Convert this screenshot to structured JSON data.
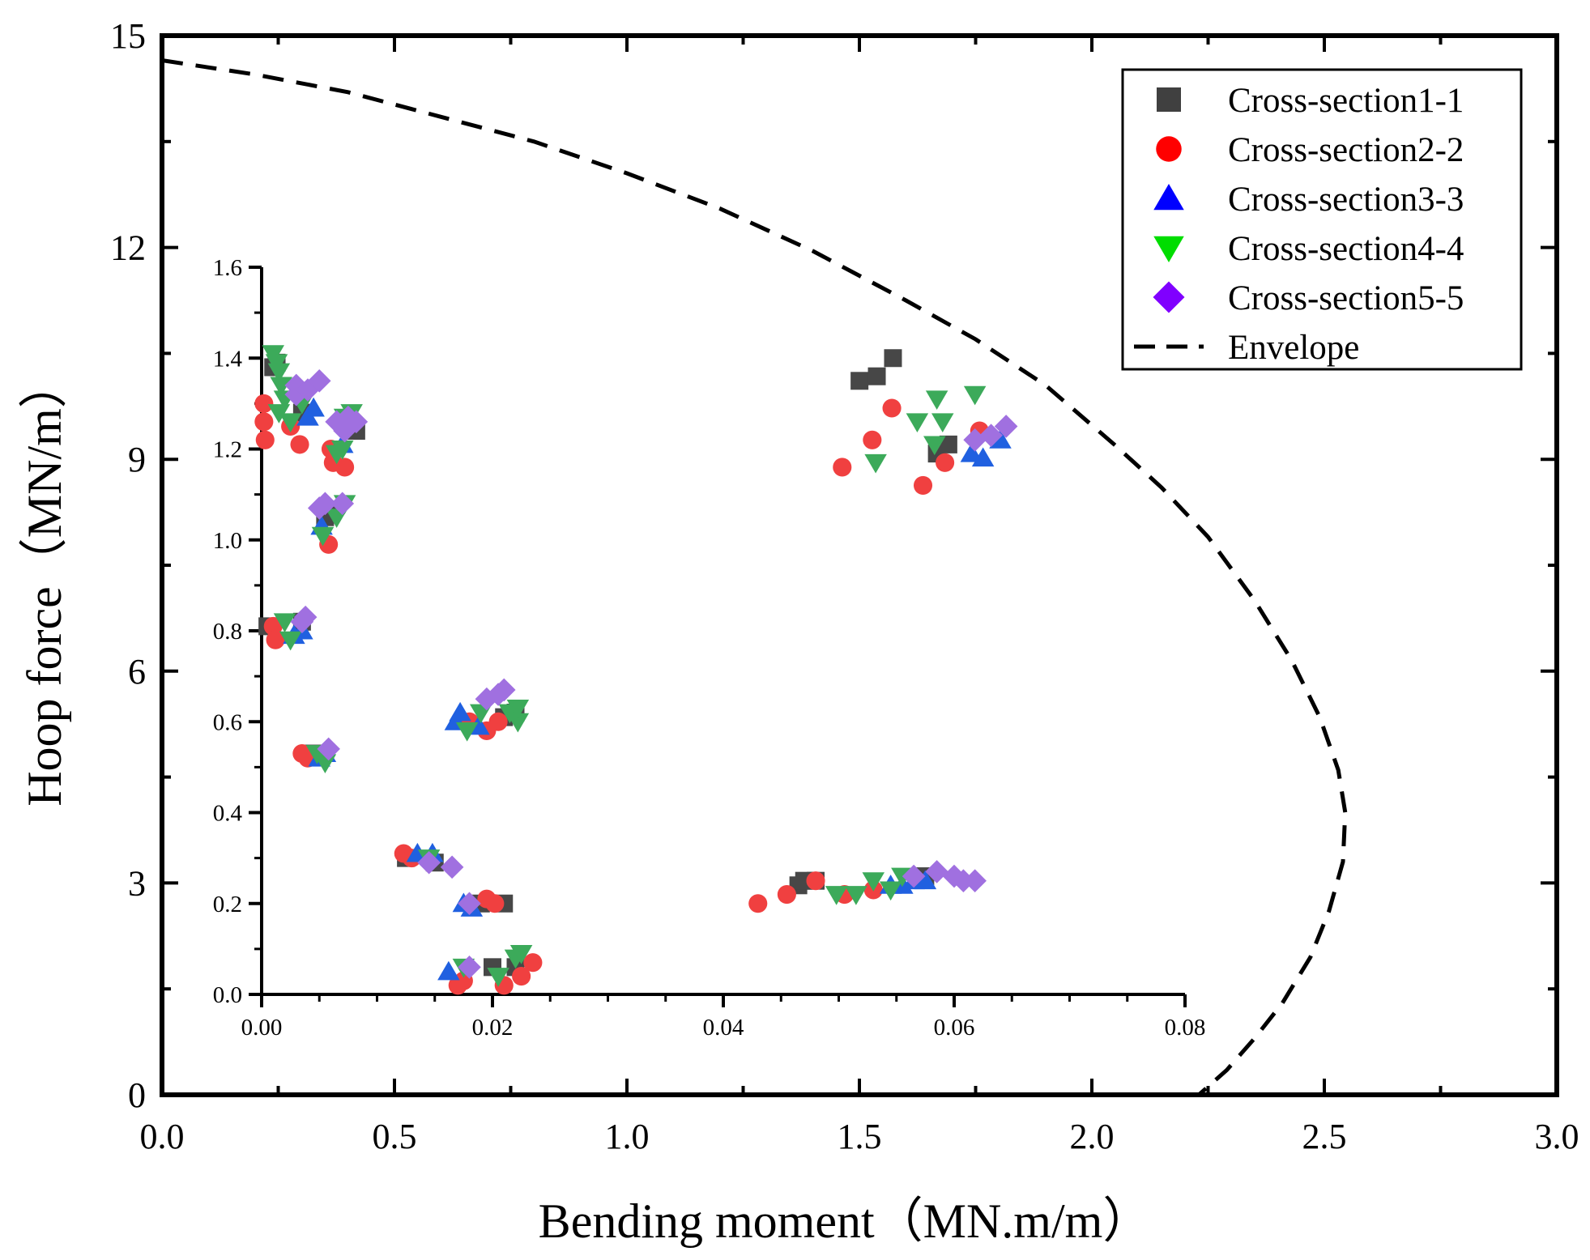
{
  "chart_data": [
    {
      "id": "main",
      "type": "line",
      "title": "",
      "xlabel": "Bending moment（MN.m/m）",
      "ylabel": "Hoop force（MN/m）",
      "xlim": [
        0,
        3
      ],
      "ylim": [
        0,
        15
      ],
      "xticks": [
        0.0,
        0.5,
        1.0,
        1.5,
        2.0,
        2.5,
        3.0
      ],
      "xtick_labels": [
        "0.0",
        "0.5",
        "1.0",
        "1.5",
        "2.0",
        "2.5",
        "3.0"
      ],
      "yticks": [
        0,
        3,
        6,
        9,
        12,
        15
      ],
      "ytick_labels": [
        "0",
        "3",
        "6",
        "9",
        "12",
        "15"
      ],
      "legend_position": "top-right",
      "series": [
        {
          "name": "Envelope",
          "style": "dashed",
          "color": "#000000",
          "x": [
            0.0,
            0.2,
            0.4,
            0.6,
            0.8,
            1.0,
            1.2,
            1.4,
            1.6,
            1.75,
            1.9,
            2.05,
            2.15,
            2.25,
            2.35,
            2.43,
            2.49,
            2.53,
            2.545,
            2.54,
            2.51,
            2.47,
            2.41,
            2.35,
            2.29,
            2.23
          ],
          "y": [
            14.65,
            14.45,
            14.2,
            13.85,
            13.5,
            13.05,
            12.55,
            11.95,
            11.25,
            10.7,
            10.05,
            9.2,
            8.6,
            7.9,
            7.0,
            6.15,
            5.35,
            4.6,
            4.0,
            3.3,
            2.6,
            1.95,
            1.3,
            0.8,
            0.35,
            0.0
          ]
        }
      ],
      "legend_entries": [
        {
          "label": "Cross-section1-1",
          "marker": "square",
          "color": "#404040"
        },
        {
          "label": "Cross-section2-2",
          "marker": "circle",
          "color": "#ff0000"
        },
        {
          "label": "Cross-section3-3",
          "marker": "triangle-up",
          "color": "#0000ff"
        },
        {
          "label": "Cross-section4-4",
          "marker": "triangle-down",
          "color": "#00dd00"
        },
        {
          "label": "Cross-section5-5",
          "marker": "diamond",
          "color": "#8000ff"
        },
        {
          "label": "Envelope",
          "marker": "dash",
          "color": "#000000"
        }
      ]
    },
    {
      "id": "inset",
      "type": "scatter",
      "xlim": [
        0,
        0.08
      ],
      "ylim": [
        0,
        1.6
      ],
      "xticks": [
        0.0,
        0.02,
        0.04,
        0.06,
        0.08
      ],
      "xtick_labels": [
        "0.00",
        "0.02",
        "0.04",
        "0.06",
        "0.08"
      ],
      "yticks": [
        0.0,
        0.2,
        0.4,
        0.6,
        0.8,
        1.0,
        1.2,
        1.4,
        1.6
      ],
      "ytick_labels": [
        "0.0",
        "0.2",
        "0.4",
        "0.6",
        "0.8",
        "1.0",
        "1.2",
        "1.4",
        "1.6"
      ],
      "series": [
        {
          "name": "Cross-section1-1",
          "marker": "square",
          "color": "#404040",
          "points": [
            [
              0.0005,
              0.81
            ],
            [
              0.001,
              1.38
            ],
            [
              0.0013,
              1.39
            ],
            [
              0.0035,
              1.28
            ],
            [
              0.0055,
              1.05
            ],
            [
              0.006,
              1.06
            ],
            [
              0.0078,
              1.25
            ],
            [
              0.0082,
              1.24
            ],
            [
              0.0035,
              0.82
            ],
            [
              0.0045,
              0.53
            ],
            [
              0.0125,
              0.3
            ],
            [
              0.015,
              0.29
            ],
            [
              0.019,
              0.2
            ],
            [
              0.021,
              0.2
            ],
            [
              0.021,
              0.61
            ],
            [
              0.022,
              0.62
            ],
            [
              0.02,
              0.06
            ],
            [
              0.022,
              0.06
            ],
            [
              0.0465,
              0.24
            ],
            [
              0.047,
              0.25
            ],
            [
              0.048,
              0.25
            ],
            [
              0.0518,
              1.35
            ],
            [
              0.0533,
              1.36
            ],
            [
              0.0547,
              1.4
            ],
            [
              0.0585,
              1.19
            ],
            [
              0.0595,
              1.21
            ],
            [
              0.0575,
              0.26
            ]
          ]
        },
        {
          "name": "Cross-section2-2",
          "marker": "circle",
          "color": "#ff0000",
          "points": [
            [
              0.0002,
              1.3
            ],
            [
              0.0003,
              1.22
            ],
            [
              0.0002,
              1.26
            ],
            [
              0.001,
              0.81
            ],
            [
              0.0012,
              0.78
            ],
            [
              0.0025,
              1.25
            ],
            [
              0.0033,
              1.21
            ],
            [
              0.006,
              1.2
            ],
            [
              0.0062,
              1.17
            ],
            [
              0.0072,
              1.16
            ],
            [
              0.0058,
              0.99
            ],
            [
              0.0035,
              0.53
            ],
            [
              0.004,
              0.52
            ],
            [
              0.0123,
              0.31
            ],
            [
              0.013,
              0.3
            ],
            [
              0.017,
              0.02
            ],
            [
              0.0175,
              0.03
            ],
            [
              0.0195,
              0.58
            ],
            [
              0.018,
              0.6
            ],
            [
              0.0205,
              0.6
            ],
            [
              0.0195,
              0.21
            ],
            [
              0.0202,
              0.2
            ],
            [
              0.021,
              0.02
            ],
            [
              0.0225,
              0.04
            ],
            [
              0.0235,
              0.07
            ],
            [
              0.043,
              0.2
            ],
            [
              0.0455,
              0.22
            ],
            [
              0.048,
              0.25
            ],
            [
              0.0505,
              0.22
            ],
            [
              0.053,
              0.23
            ],
            [
              0.0503,
              1.16
            ],
            [
              0.0529,
              1.22
            ],
            [
              0.0546,
              1.29
            ],
            [
              0.0573,
              1.12
            ],
            [
              0.0592,
              1.17
            ],
            [
              0.0622,
              1.24
            ]
          ]
        },
        {
          "name": "Cross-section3-3",
          "marker": "triangle-up",
          "color": "#0000ff",
          "points": [
            [
              0.004,
              1.27
            ],
            [
              0.0045,
              1.29
            ],
            [
              0.007,
              1.21
            ],
            [
              0.0052,
              1.03
            ],
            [
              0.0028,
              0.79
            ],
            [
              0.0035,
              0.8
            ],
            [
              0.005,
              0.52
            ],
            [
              0.0055,
              0.53
            ],
            [
              0.0135,
              0.31
            ],
            [
              0.0148,
              0.31
            ],
            [
              0.0168,
              0.6
            ],
            [
              0.0172,
              0.62
            ],
            [
              0.0188,
              0.59
            ],
            [
              0.0175,
              0.2
            ],
            [
              0.0182,
              0.19
            ],
            [
              0.0162,
              0.05
            ],
            [
              0.0545,
              0.24
            ],
            [
              0.0555,
              0.24
            ],
            [
              0.0565,
              0.25
            ],
            [
              0.0575,
              0.25
            ],
            [
              0.0615,
              1.19
            ],
            [
              0.0625,
              1.18
            ],
            [
              0.064,
              1.22
            ]
          ]
        },
        {
          "name": "Cross-section4-4",
          "marker": "triangle-down",
          "color": "#00dd00",
          "points": [
            [
              0.001,
              1.41
            ],
            [
              0.0013,
              1.39
            ],
            [
              0.0015,
              1.37
            ],
            [
              0.0017,
              1.34
            ],
            [
              0.002,
              1.31
            ],
            [
              0.0025,
              1.26
            ],
            [
              0.0015,
              1.28
            ],
            [
              0.0035,
              1.3
            ],
            [
              0.0072,
              1.27
            ],
            [
              0.0078,
              1.28
            ],
            [
              0.0065,
              1.19
            ],
            [
              0.007,
              1.2
            ],
            [
              0.0072,
              1.08
            ],
            [
              0.0065,
              1.05
            ],
            [
              0.0053,
              1.01
            ],
            [
              0.002,
              0.82
            ],
            [
              0.0025,
              0.78
            ],
            [
              0.0055,
              0.51
            ],
            [
              0.0048,
              0.53
            ],
            [
              0.0145,
              0.3
            ],
            [
              0.0178,
              0.58
            ],
            [
              0.019,
              0.62
            ],
            [
              0.0215,
              0.62
            ],
            [
              0.0222,
              0.6
            ],
            [
              0.0222,
              0.63
            ],
            [
              0.0175,
              0.06
            ],
            [
              0.0205,
              0.04
            ],
            [
              0.022,
              0.08
            ],
            [
              0.0225,
              0.09
            ],
            [
              0.0498,
              0.22
            ],
            [
              0.0515,
              0.22
            ],
            [
              0.053,
              0.25
            ],
            [
              0.0545,
              0.23
            ],
            [
              0.0555,
              0.26
            ],
            [
              0.0532,
              1.17
            ],
            [
              0.0568,
              1.26
            ],
            [
              0.0583,
              1.21
            ],
            [
              0.059,
              1.26
            ],
            [
              0.0585,
              1.31
            ],
            [
              0.0618,
              1.32
            ]
          ]
        },
        {
          "name": "Cross-section5-5",
          "marker": "diamond",
          "color": "#8000ff",
          "points": [
            [
              0.003,
              1.34
            ],
            [
              0.003,
              1.32
            ],
            [
              0.004,
              1.33
            ],
            [
              0.005,
              1.35
            ],
            [
              0.0065,
              1.26
            ],
            [
              0.0075,
              1.27
            ],
            [
              0.0072,
              1.24
            ],
            [
              0.0082,
              1.26
            ],
            [
              0.005,
              1.07
            ],
            [
              0.0055,
              1.08
            ],
            [
              0.007,
              1.08
            ],
            [
              0.0035,
              0.82
            ],
            [
              0.0038,
              0.83
            ],
            [
              0.0058,
              0.54
            ],
            [
              0.0145,
              0.29
            ],
            [
              0.0165,
              0.28
            ],
            [
              0.018,
              0.2
            ],
            [
              0.018,
              0.06
            ],
            [
              0.0195,
              0.65
            ],
            [
              0.0205,
              0.66
            ],
            [
              0.021,
              0.67
            ],
            [
              0.0565,
              0.26
            ],
            [
              0.0585,
              0.27
            ],
            [
              0.06,
              0.26
            ],
            [
              0.0608,
              0.25
            ],
            [
              0.0618,
              0.25
            ],
            [
              0.0618,
              1.22
            ],
            [
              0.0632,
              1.23
            ],
            [
              0.0645,
              1.25
            ]
          ]
        }
      ]
    }
  ]
}
